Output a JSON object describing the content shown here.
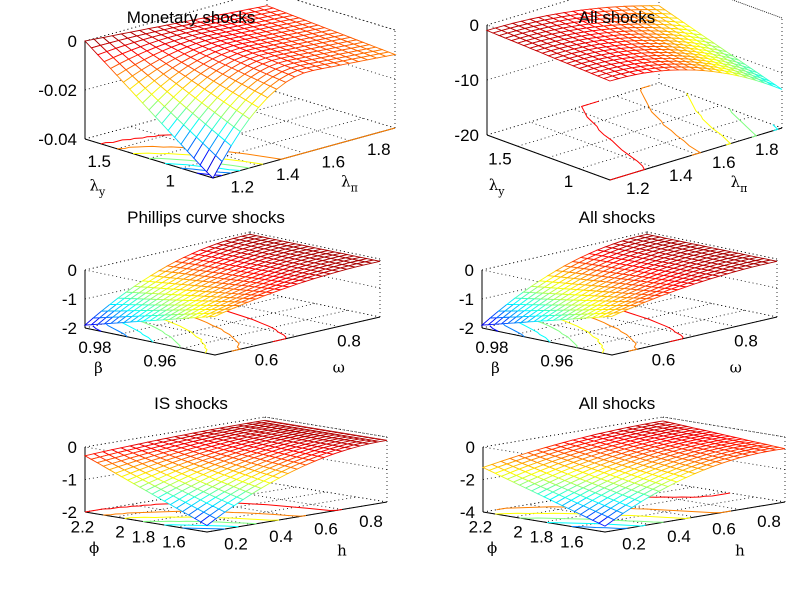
{
  "chart_data": [
    {
      "type": "surface",
      "title": "Monetary shocks",
      "xlabel": "λπ",
      "xlabel_base": "λ",
      "xlabel_sub": "π",
      "ylabel": "λy",
      "ylabel_base": "λ",
      "ylabel_sub": "y",
      "xlim": [
        1.1,
        1.9
      ],
      "ylim": [
        0.5,
        1.6
      ],
      "zlim": [
        -0.05,
        0
      ],
      "x_ticks": [
        "1.2",
        "1.4",
        "1.6",
        "1.8"
      ],
      "y_ticks": [
        "1.5",
        "1"
      ],
      "z_ticks": [
        "0",
        "-0.02",
        "-0.04"
      ],
      "z_values_min": -0.05,
      "z_values_max": 0,
      "grid": true,
      "colormap": "jet",
      "contours_on_floor": true
    },
    {
      "type": "surface",
      "title": "All shocks",
      "xlabel": "λπ",
      "xlabel_base": "λ",
      "xlabel_sub": "π",
      "ylabel": "λy",
      "ylabel_base": "λ",
      "ylabel_sub": "y",
      "xlim": [
        1.1,
        1.9
      ],
      "ylim": [
        0.5,
        1.6
      ],
      "zlim": [
        -20,
        0
      ],
      "x_ticks": [
        "1.2",
        "1.4",
        "1.6",
        "1.8"
      ],
      "y_ticks": [
        "1.5",
        "1"
      ],
      "z_ticks": [
        "0",
        "-10",
        "-20"
      ],
      "z_values_min": -12,
      "z_values_max": 0,
      "grid": true,
      "colormap": "jet",
      "contours_on_floor": true
    },
    {
      "type": "surface",
      "title": "Phillips curve shocks",
      "xlabel": "ω",
      "xlabel_base": "ω",
      "xlabel_sub": "",
      "ylabel": "β",
      "ylabel_base": "β",
      "ylabel_sub": "",
      "xlim": [
        0.45,
        0.85
      ],
      "ylim": [
        0.95,
        0.99
      ],
      "zlim": [
        -2,
        0
      ],
      "x_ticks": [
        "0.6",
        "0.8"
      ],
      "y_ticks": [
        "0.98",
        "0.96"
      ],
      "z_ticks": [
        "0",
        "-1",
        "-2"
      ],
      "z_values_min": -2,
      "z_values_max": 0,
      "grid": true,
      "colormap": "jet",
      "contours_on_floor": true
    },
    {
      "type": "surface",
      "title": "All shocks",
      "xlabel": "ω",
      "xlabel_base": "ω",
      "xlabel_sub": "",
      "ylabel": "β",
      "ylabel_base": "β",
      "ylabel_sub": "",
      "xlim": [
        0.45,
        0.85
      ],
      "ylim": [
        0.95,
        0.99
      ],
      "zlim": [
        -2,
        0
      ],
      "x_ticks": [
        "0.6",
        "0.8"
      ],
      "y_ticks": [
        "0.98",
        "0.96"
      ],
      "z_ticks": [
        "0",
        "-1",
        "-2"
      ],
      "z_values_min": -2,
      "z_values_max": 0,
      "grid": true,
      "colormap": "jet",
      "contours_on_floor": true
    },
    {
      "type": "surface",
      "title": "IS shocks",
      "xlabel": "h",
      "xlabel_base": "h",
      "xlabel_sub": "",
      "ylabel": "ϕ",
      "ylabel_base": "ϕ",
      "ylabel_sub": "",
      "xlim": [
        0.05,
        0.9
      ],
      "ylim": [
        1.5,
        2.3
      ],
      "zlim": [
        -2,
        0
      ],
      "x_ticks": [
        "0.2",
        "0.4",
        "0.6",
        "0.8"
      ],
      "y_ticks": [
        "2.2",
        "2",
        "1.8",
        "1.6"
      ],
      "z_ticks": [
        "0",
        "-1",
        "-2"
      ],
      "z_values_min": -1.9,
      "z_values_max": 0,
      "grid": true,
      "colormap": "jet",
      "contours_on_floor": true
    },
    {
      "type": "surface",
      "title": "All shocks",
      "xlabel": "h",
      "xlabel_base": "h",
      "xlabel_sub": "",
      "ylabel": "ϕ",
      "ylabel_base": "ϕ",
      "ylabel_sub": "",
      "xlim": [
        0.05,
        0.9
      ],
      "ylim": [
        1.5,
        2.3
      ],
      "zlim": [
        -4,
        0
      ],
      "x_ticks": [
        "0.2",
        "0.4",
        "0.6",
        "0.8"
      ],
      "y_ticks": [
        "2.2",
        "2",
        "1.8",
        "1.6"
      ],
      "z_ticks": [
        "0",
        "-2",
        "-4"
      ],
      "z_values_min": -3.5,
      "z_values_max": 0,
      "grid": true,
      "colormap": "jet",
      "contours_on_floor": true
    }
  ]
}
